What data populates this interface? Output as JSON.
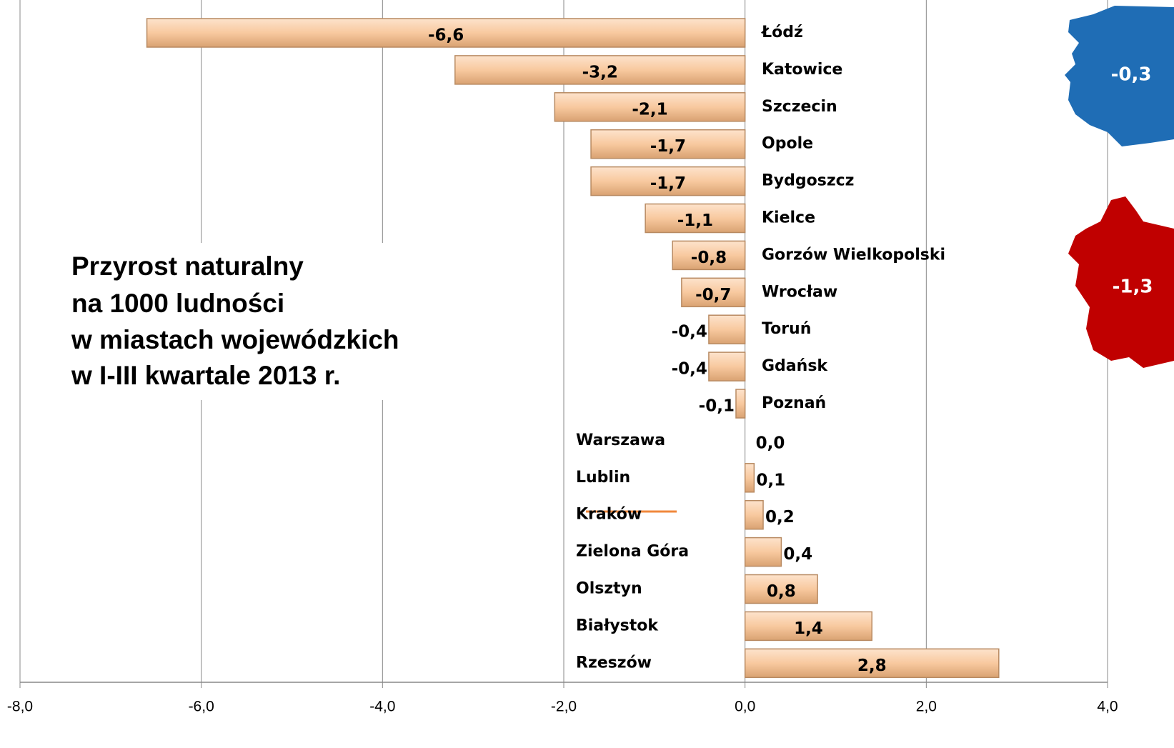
{
  "chart_data": {
    "type": "barh",
    "title": [
      "Przyrost naturalny",
      "na 1000 ludności",
      "w miastach wojewódzkich",
      "w I-III kwartale 2013 r."
    ],
    "categories": [
      "Łódź",
      "Katowice",
      "Szczecin",
      "Opole",
      "Bydgoszcz",
      "Kielce",
      "Gorzów Wielkopolski",
      "Wrocław",
      "Toruń",
      "Gdańsk",
      "Poznań",
      "Warszawa",
      "Lublin",
      "Kraków",
      "Zielona Góra",
      "Olsztyn",
      "Białystok",
      "Rzeszów"
    ],
    "values": [
      -6.6,
      -3.2,
      -2.1,
      -1.7,
      -1.7,
      -1.1,
      -0.8,
      -0.7,
      -0.4,
      -0.4,
      -0.1,
      0.0,
      0.1,
      0.2,
      0.4,
      0.8,
      1.4,
      2.8
    ],
    "value_labels": [
      "-6,6",
      "-3,2",
      "-2,1",
      "-1,7",
      "-1,7",
      "-1,1",
      "-0,8",
      "-0,7",
      "-0,4",
      "-0,4",
      "-0,1",
      "0,0",
      "0,1",
      "0,2",
      "0,4",
      "0,8",
      "1,4",
      "2,8"
    ],
    "color": "#f8c99f",
    "xlim": [
      -8,
      4
    ],
    "xticks": [
      {
        "value": -8,
        "label": "-8,0"
      },
      {
        "value": -6,
        "label": "-6,0"
      },
      {
        "value": -4,
        "label": "-4,0"
      },
      {
        "value": -2,
        "label": "-2,0"
      },
      {
        "value": 0,
        "label": "0,0"
      },
      {
        "value": 2,
        "label": "2,0"
      },
      {
        "value": 4,
        "label": "4,0"
      }
    ],
    "grid": true,
    "annotations": [
      {
        "label": "-0,3",
        "color": "#1f6db5"
      },
      {
        "label": "-1,3",
        "color": "#c00000"
      }
    ]
  }
}
